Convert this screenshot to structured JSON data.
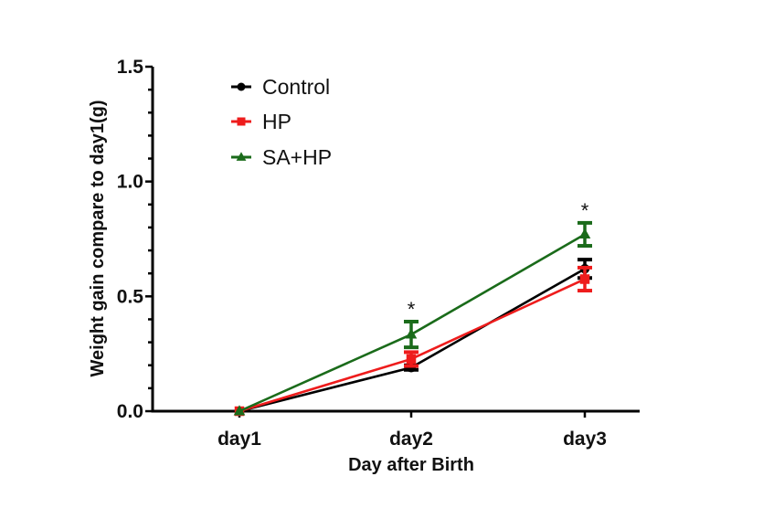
{
  "chart_data": {
    "type": "line",
    "title": "",
    "xlabel": "Day after Birth",
    "ylabel": "Weight gain compare to day1(g)",
    "categories": [
      "day1",
      "day2",
      "day3"
    ],
    "ylim": [
      0,
      1.5
    ],
    "yticks": [
      0.0,
      0.5,
      1.0,
      1.5
    ],
    "ytick_labels": [
      "0.0",
      "0.5",
      "1.0",
      "1.5"
    ],
    "y_minor_step": 0.1,
    "grid": false,
    "legend_position": "top-left",
    "series": [
      {
        "name": "Control",
        "color": "#000000",
        "marker": "circle",
        "values": [
          0.0,
          0.19,
          0.62
        ],
        "errors": [
          0.0,
          0.01,
          0.04
        ]
      },
      {
        "name": "HP",
        "color": "#ee1c1c",
        "marker": "square",
        "values": [
          0.0,
          0.227,
          0.575
        ],
        "errors": [
          0.0,
          0.03,
          0.05
        ]
      },
      {
        "name": "SA+HP",
        "color": "#1a6b1a",
        "marker": "triangle",
        "values": [
          0.0,
          0.334,
          0.77
        ],
        "errors": [
          0.0,
          0.056,
          0.05
        ]
      }
    ],
    "annotations": [
      {
        "text": "*",
        "category": "day2",
        "series": "SA+HP"
      },
      {
        "text": "*",
        "category": "day3",
        "series": "SA+HP"
      }
    ]
  }
}
